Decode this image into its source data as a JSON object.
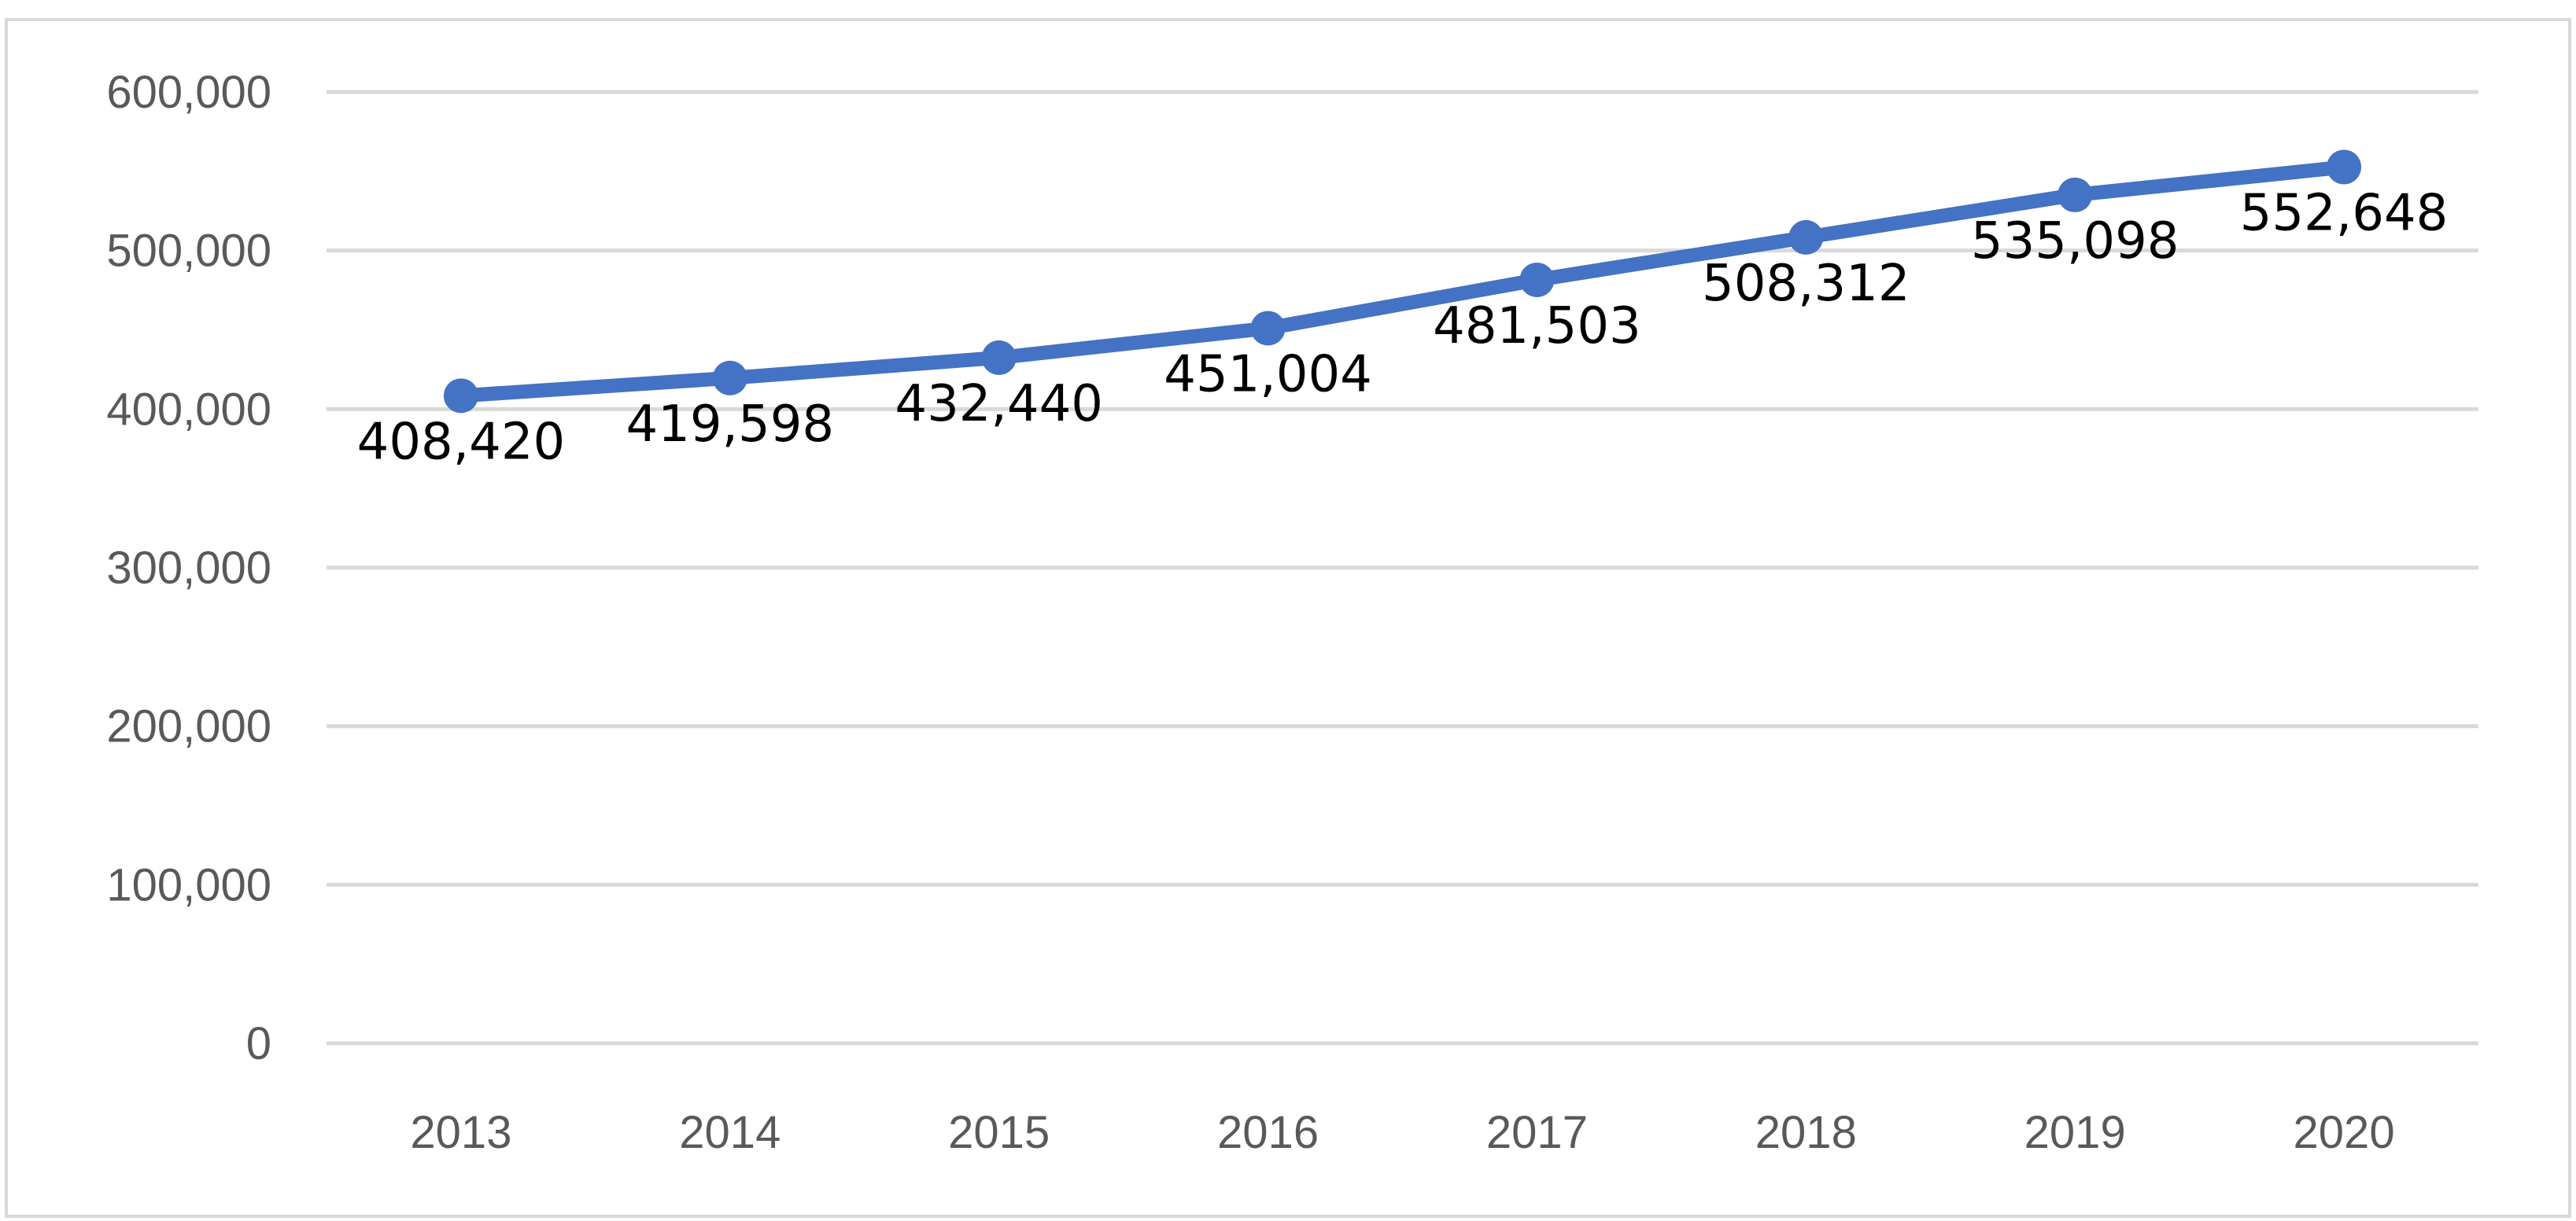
{
  "chart_data": {
    "type": "line",
    "title": "",
    "xlabel": "",
    "ylabel": "",
    "categories": [
      "2013",
      "2014",
      "2015",
      "2016",
      "2017",
      "2018",
      "2019",
      "2020"
    ],
    "series": [
      {
        "values": [
          408420,
          419598,
          432440,
          451004,
          481503,
          508312,
          535098,
          552648
        ],
        "labels": [
          "408,420",
          "419,598",
          "432,440",
          "451,004",
          "481,503",
          "508,312",
          "535,098",
          "552,648"
        ],
        "color": "#4472c4",
        "marker": "circle"
      }
    ],
    "ylim": [
      0,
      600000
    ],
    "yticks": [
      0,
      100000,
      200000,
      300000,
      400000,
      500000,
      600000
    ],
    "ytick_labels": [
      "0",
      "100,000",
      "200,000",
      "300,000",
      "400,000",
      "500,000",
      "600,000"
    ],
    "grid": true,
    "legend": "none"
  }
}
